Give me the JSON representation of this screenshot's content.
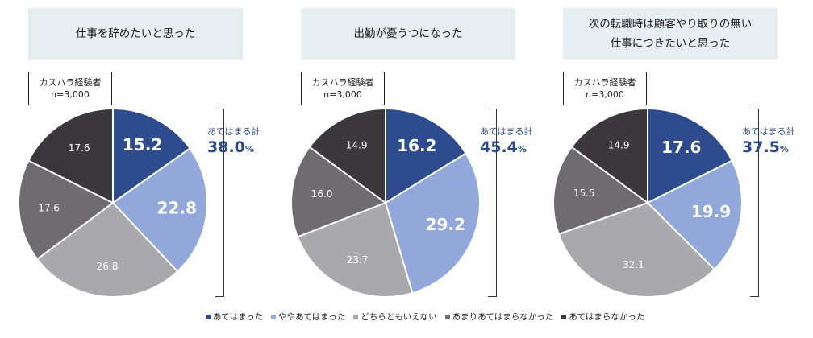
{
  "legend": [
    {
      "label": "あてはまった",
      "color": "#2e4b8e"
    },
    {
      "label": "ややあてはまった",
      "color": "#93a8da"
    },
    {
      "label": "どちらともいえない",
      "color": "#a9a8ad"
    },
    {
      "label": "あまりあてはまらなかった",
      "color": "#6e6c71"
    },
    {
      "label": "あてはまらなかった",
      "color": "#3a383c"
    }
  ],
  "sample_label": [
    "カスハラ経験者",
    "n=3,000"
  ],
  "sum_label": "あてはまる計",
  "sum_unit": "%",
  "chart_data": [
    {
      "type": "pie",
      "title": "仕事を辞めたいと思った",
      "categories": [
        "あてはまった",
        "ややあてはまった",
        "どちらともいえない",
        "あまりあてはまらなかった",
        "あてはまらなかった"
      ],
      "values": [
        15.2,
        22.8,
        26.8,
        17.6,
        17.6
      ],
      "total": "38.0"
    },
    {
      "type": "pie",
      "title": "出勤が憂うつになった",
      "categories": [
        "あてはまった",
        "ややあてはまった",
        "どちらともいえない",
        "あまりあてはまらなかった",
        "あてはまらなかった"
      ],
      "values": [
        16.2,
        29.2,
        23.7,
        16.0,
        14.9
      ],
      "total": "45.4"
    },
    {
      "type": "pie",
      "title": "次の転職時は顧客やり取りの無い\n仕事につきたいと思った",
      "categories": [
        "あてはまった",
        "ややあてはまった",
        "どちらともいえない",
        "あまりあてはまらなかった",
        "あてはまらなかった"
      ],
      "values": [
        17.6,
        19.9,
        32.1,
        15.5,
        14.9
      ],
      "total": "37.5"
    }
  ]
}
